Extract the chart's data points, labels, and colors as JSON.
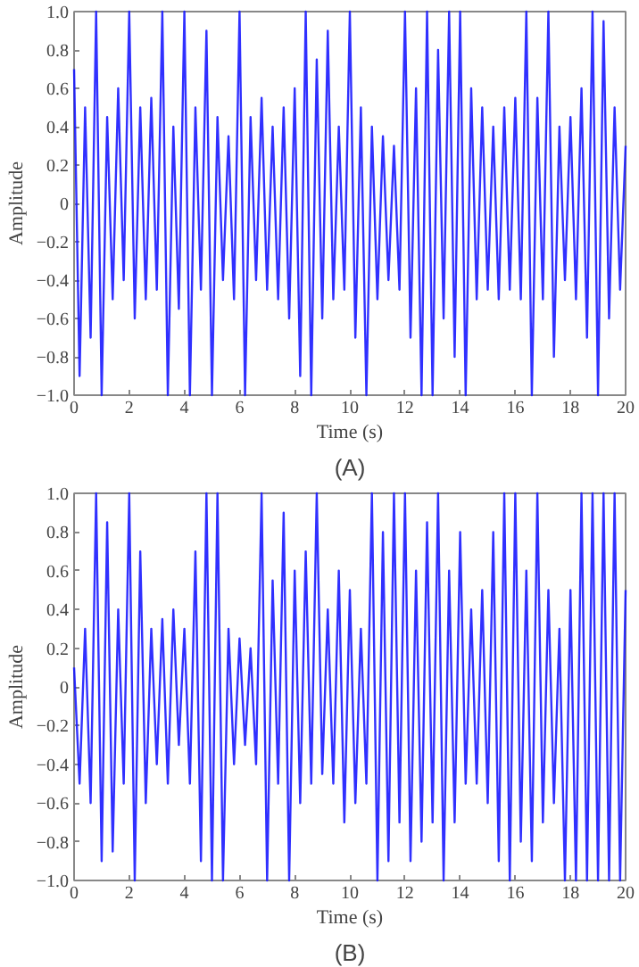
{
  "chart_data": [
    {
      "type": "line",
      "xlabel": "Time (s)",
      "ylabel": "Amplitude",
      "annotations": [
        "(A)"
      ],
      "color": "#1a1aff",
      "x": [
        0.0,
        0.2,
        0.4,
        0.6,
        0.8,
        1.0,
        1.2,
        1.4,
        1.6,
        1.8,
        2.0,
        2.2,
        2.4,
        2.6,
        2.8,
        3.0,
        3.2,
        3.4,
        3.6,
        3.8,
        4.0,
        4.2,
        4.4,
        4.6,
        4.8,
        5.0,
        5.2,
        5.4,
        5.6,
        5.8,
        6.0,
        6.2,
        6.4,
        6.6,
        6.8,
        7.0,
        7.2,
        7.4,
        7.6,
        7.8,
        8.0,
        8.2,
        8.4,
        8.6,
        8.8,
        9.0,
        9.2,
        9.4,
        9.6,
        9.8,
        10.0,
        10.2,
        10.4,
        10.6,
        10.8,
        11.0,
        11.2,
        11.4,
        11.6,
        11.8,
        12.0,
        12.2,
        12.4,
        12.6,
        12.8,
        13.0,
        13.2,
        13.4,
        13.6,
        13.8,
        14.0,
        14.2,
        14.4,
        14.6,
        14.8,
        15.0,
        15.2,
        15.4,
        15.6,
        15.8,
        16.0,
        16.2,
        16.4,
        16.6,
        16.8,
        17.0,
        17.2,
        17.4,
        17.6,
        17.8,
        18.0,
        18.2,
        18.4,
        18.6,
        18.8,
        19.0,
        19.2,
        19.4,
        19.6,
        19.8,
        20.0
      ],
      "values": [
        0.7,
        -0.9,
        0.5,
        -0.7,
        1.0,
        -1.0,
        0.45,
        -0.5,
        0.6,
        -0.4,
        1.0,
        -0.6,
        0.5,
        -0.5,
        0.55,
        -0.45,
        1.0,
        -1.0,
        0.4,
        -0.55,
        1.0,
        -1.0,
        0.5,
        -0.45,
        0.9,
        -1.0,
        0.45,
        -0.4,
        0.35,
        -0.5,
        1.0,
        -1.0,
        0.45,
        -0.4,
        0.55,
        -0.45,
        0.4,
        -0.5,
        0.5,
        -0.6,
        0.6,
        -0.9,
        1.0,
        -1.0,
        0.75,
        -0.6,
        0.9,
        -0.5,
        0.4,
        -0.45,
        1.0,
        -0.7,
        0.5,
        -1.0,
        0.4,
        -0.5,
        0.35,
        -0.4,
        0.3,
        -0.45,
        1.0,
        -0.7,
        0.6,
        -1.0,
        1.0,
        -1.0,
        0.8,
        -0.6,
        1.0,
        -0.8,
        1.0,
        -1.0,
        0.6,
        -0.5,
        0.5,
        -0.45,
        0.4,
        -0.5,
        0.5,
        -0.45,
        0.55,
        -0.5,
        1.0,
        -1.0,
        0.55,
        -0.5,
        1.0,
        -0.8,
        0.4,
        -0.4,
        0.45,
        -0.5,
        0.6,
        -0.7,
        1.0,
        -1.0,
        0.95,
        -0.6,
        0.5,
        -0.45,
        0.3
      ],
      "xlim": [
        0,
        20
      ],
      "xticks": [
        0,
        2,
        4,
        6,
        8,
        10,
        12,
        14,
        16,
        18,
        20
      ],
      "ylim": [
        -1,
        1
      ],
      "yticks": [
        {
          "value": -1,
          "label": "−1.0"
        },
        {
          "value": -0.8,
          "label": "−0.8"
        },
        {
          "value": -0.6,
          "label": "−0.6"
        },
        {
          "value": -0.4,
          "label": "−0.4"
        },
        {
          "value": -0.2,
          "label": "−0.2"
        },
        0,
        0.2,
        0.4,
        0.6,
        0.8,
        {
          "value": 1,
          "label": "1.0"
        }
      ]
    },
    {
      "type": "line",
      "xlabel": "Time (s)",
      "ylabel": "Amplitude",
      "annotations": [
        "(B)"
      ],
      "color": "#1a1aff",
      "x": [
        0.0,
        0.2,
        0.4,
        0.6,
        0.8,
        1.0,
        1.2,
        1.4,
        1.6,
        1.8,
        2.0,
        2.2,
        2.4,
        2.6,
        2.8,
        3.0,
        3.2,
        3.4,
        3.6,
        3.8,
        4.0,
        4.2,
        4.4,
        4.6,
        4.8,
        5.0,
        5.2,
        5.4,
        5.6,
        5.8,
        6.0,
        6.2,
        6.4,
        6.6,
        6.8,
        7.0,
        7.2,
        7.4,
        7.6,
        7.8,
        8.0,
        8.2,
        8.4,
        8.6,
        8.8,
        9.0,
        9.2,
        9.4,
        9.6,
        9.8,
        10.0,
        10.2,
        10.4,
        10.6,
        10.8,
        11.0,
        11.2,
        11.4,
        11.6,
        11.8,
        12.0,
        12.2,
        12.4,
        12.6,
        12.8,
        13.0,
        13.2,
        13.4,
        13.6,
        13.8,
        14.0,
        14.2,
        14.4,
        14.6,
        14.8,
        15.0,
        15.2,
        15.4,
        15.6,
        15.8,
        16.0,
        16.2,
        16.4,
        16.6,
        16.8,
        17.0,
        17.2,
        17.4,
        17.6,
        17.8,
        18.0,
        18.2,
        18.4,
        18.6,
        18.8,
        19.0,
        19.2,
        19.4,
        19.6,
        19.8,
        20.0
      ],
      "values": [
        0.1,
        -0.5,
        0.3,
        -0.6,
        1.0,
        -0.9,
        0.85,
        -0.85,
        0.4,
        -0.5,
        1.0,
        -1.0,
        0.7,
        -0.6,
        0.3,
        -0.4,
        0.35,
        -0.5,
        0.4,
        -0.3,
        0.3,
        -0.5,
        0.7,
        -0.9,
        1.0,
        -1.0,
        1.0,
        -1.0,
        0.3,
        -0.4,
        0.25,
        -0.3,
        0.2,
        -0.4,
        1.0,
        -1.0,
        0.55,
        -0.5,
        0.9,
        -1.0,
        0.6,
        -0.6,
        0.7,
        -0.5,
        1.0,
        -0.45,
        0.4,
        -0.5,
        0.6,
        -0.7,
        0.5,
        -0.6,
        0.3,
        -0.5,
        1.0,
        -1.0,
        0.8,
        -0.9,
        1.0,
        -0.7,
        1.0,
        -0.9,
        0.6,
        -0.8,
        0.85,
        -0.7,
        1.0,
        -1.0,
        0.6,
        -0.7,
        0.8,
        -0.5,
        0.4,
        -0.5,
        0.5,
        -0.6,
        0.8,
        -0.9,
        1.0,
        -1.0,
        1.0,
        -0.8,
        0.6,
        -0.9,
        1.0,
        -0.7,
        0.5,
        -0.6,
        0.3,
        -1.0,
        0.5,
        -1.0,
        1.0,
        -1.0,
        1.0,
        -1.0,
        1.0,
        -1.0,
        1.0,
        -1.0,
        0.5
      ],
      "xlim": [
        0,
        20
      ],
      "xticks": [
        0,
        2,
        4,
        6,
        8,
        10,
        12,
        14,
        16,
        18,
        20
      ],
      "ylim": [
        -1,
        1
      ],
      "yticks": [
        {
          "value": -1,
          "label": "−1.0"
        },
        {
          "value": -0.8,
          "label": "−0.8"
        },
        {
          "value": -0.6,
          "label": "−0.6"
        },
        {
          "value": -0.4,
          "label": "−0.4"
        },
        {
          "value": -0.2,
          "label": "−0.2"
        },
        0,
        0.2,
        0.4,
        0.6,
        0.8,
        {
          "value": 1,
          "label": "1.0"
        }
      ]
    }
  ]
}
